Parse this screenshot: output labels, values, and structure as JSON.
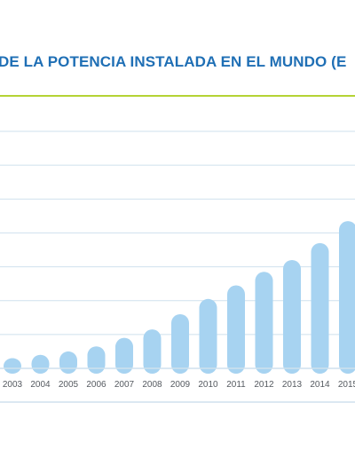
{
  "chart_data": {
    "type": "bar",
    "title": "DE LA POTENCIA INSTALADA EN EL MUNDO (E",
    "categories": [
      "2003",
      "2004",
      "2005",
      "2006",
      "2007",
      "2008",
      "2009",
      "2010",
      "2011",
      "2012",
      "2013",
      "2014",
      "2015"
    ],
    "values": [
      0.3,
      0.4,
      0.5,
      0.65,
      0.9,
      1.15,
      1.6,
      2.05,
      2.45,
      2.85,
      3.2,
      3.7,
      4.35
    ],
    "xlabel": "",
    "ylabel": "",
    "ylim": [
      0,
      7
    ],
    "grid": true,
    "colors": {
      "bar": "#a7d3f1",
      "grid": "#cfe1ee",
      "accent_line": "#b5d335",
      "title": "#1f6fb5",
      "tick_text": "#555a60"
    }
  }
}
